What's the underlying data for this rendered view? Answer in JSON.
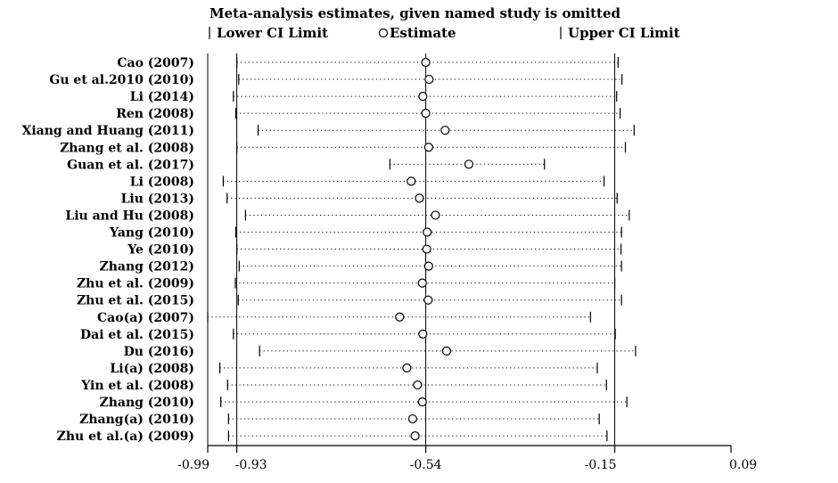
{
  "chart_data": {
    "type": "forest",
    "title": "Meta-analysis estimates, given named study is omitted",
    "legend": {
      "lower": "Lower CI Limit",
      "estimate": "Estimate",
      "upper": "Upper CI Limit"
    },
    "x_ticks": [
      {
        "value": -0.99,
        "label": "-0.99"
      },
      {
        "value": -0.93,
        "label": "-0.93"
      },
      {
        "value": -0.54,
        "label": "-0.54"
      },
      {
        "value": -0.15,
        "label": "-0.15"
      },
      {
        "value": 0.09,
        "label": "0.09"
      }
    ],
    "xlim": [
      -0.99,
      0.09
    ],
    "reference_lines": [
      -0.93,
      -0.54,
      -0.15
    ],
    "studies": [
      {
        "label": "Cao (2007)",
        "lower": -0.93,
        "estimate": -0.54,
        "upper": -0.143
      },
      {
        "label": "Gu et al.2010 (2010)",
        "lower": -0.926,
        "estimate": -0.533,
        "upper": -0.135
      },
      {
        "label": "Li (2014)",
        "lower": -0.937,
        "estimate": -0.546,
        "upper": -0.146
      },
      {
        "label": "Ren (2008)",
        "lower": -0.932,
        "estimate": -0.54,
        "upper": -0.139
      },
      {
        "label": "Xiang and Huang (2011)",
        "lower": -0.886,
        "estimate": -0.5,
        "upper": -0.11
      },
      {
        "label": "Zhang et al. (2008)",
        "lower": -0.93,
        "estimate": -0.534,
        "upper": -0.128
      },
      {
        "label": "Guan et al. (2017)",
        "lower": -0.614,
        "estimate": -0.451,
        "upper": -0.295
      },
      {
        "label": "Li (2008)",
        "lower": -0.958,
        "estimate": -0.57,
        "upper": -0.172
      },
      {
        "label": "Liu (2013)",
        "lower": -0.95,
        "estimate": -0.553,
        "upper": -0.145
      },
      {
        "label": "Liu and Hu (2008)",
        "lower": -0.912,
        "estimate": -0.52,
        "upper": -0.12
      },
      {
        "label": "Yang (2010)",
        "lower": -0.932,
        "estimate": -0.537,
        "upper": -0.136
      },
      {
        "label": "Ye (2010)",
        "lower": -0.93,
        "estimate": -0.538,
        "upper": -0.137
      },
      {
        "label": "Zhang (2012)",
        "lower": -0.925,
        "estimate": -0.534,
        "upper": -0.136
      },
      {
        "label": "Zhu et al. (2009)",
        "lower": -0.933,
        "estimate": -0.547,
        "upper": -0.15
      },
      {
        "label": "Zhu et al. (2015)",
        "lower": -0.927,
        "estimate": -0.535,
        "upper": -0.136
      },
      {
        "label": "Cao(a) (2007)",
        "lower": -0.99,
        "estimate": -0.594,
        "upper": -0.2
      },
      {
        "label": "Dai et al. (2015)",
        "lower": -0.937,
        "estimate": -0.546,
        "upper": -0.149
      },
      {
        "label": "Du (2016)",
        "lower": -0.883,
        "estimate": -0.497,
        "upper": -0.107
      },
      {
        "label": "Li(a) (2008)",
        "lower": -0.965,
        "estimate": -0.579,
        "upper": -0.186
      },
      {
        "label": "Yin et al. (2008)",
        "lower": -0.949,
        "estimate": -0.557,
        "upper": -0.167
      },
      {
        "label": "Zhang (2010)",
        "lower": -0.963,
        "estimate": -0.547,
        "upper": -0.125
      },
      {
        "label": "Zhang(a) (2010)",
        "lower": -0.947,
        "estimate": -0.567,
        "upper": -0.182
      },
      {
        "label": "Zhu et al.(a) (2009)",
        "lower": -0.947,
        "estimate": -0.562,
        "upper": -0.166
      }
    ]
  }
}
